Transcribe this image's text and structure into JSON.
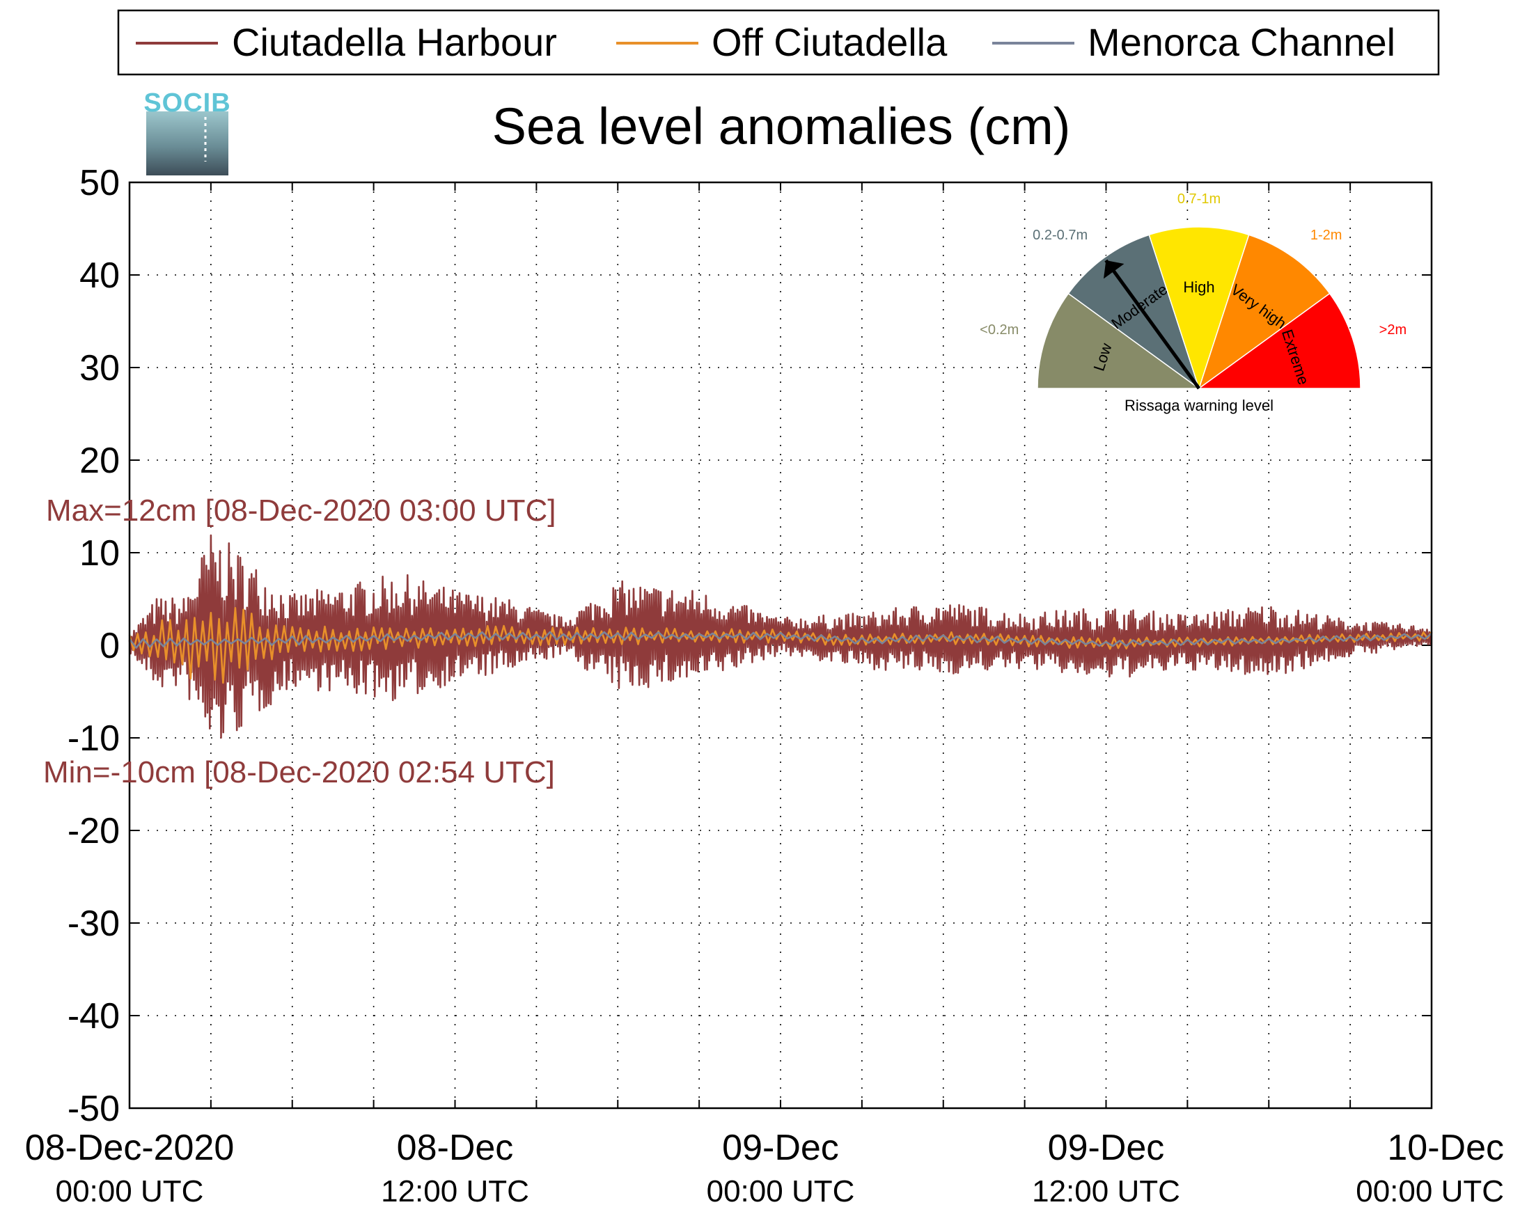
{
  "chart_data": {
    "type": "line",
    "title": "Sea level anomalies (cm)",
    "xlabel": "",
    "ylabel": "",
    "ylim": [
      -50,
      50
    ],
    "yticks": [
      -50,
      -40,
      -30,
      -20,
      -10,
      0,
      10,
      20,
      30,
      40,
      50
    ],
    "xlim": [
      "2020-12-08 00:00",
      "2020-12-10 00:00"
    ],
    "xtick_labels": [
      {
        "line1": "08-Dec-2020",
        "line2": "00:00 UTC"
      },
      {
        "line1": "08-Dec",
        "line2": "12:00 UTC"
      },
      {
        "line1": "09-Dec",
        "line2": "00:00 UTC"
      },
      {
        "line1": "09-Dec",
        "line2": "12:00 UTC"
      },
      {
        "line1": "10-Dec",
        "line2": "00:00 UTC"
      }
    ],
    "grid": true,
    "legend_position": "top",
    "series": [
      {
        "name": "Ciutadella Harbour",
        "color": "#8f3b3b",
        "peak_envelope_cm": [
          {
            "x": "2020-12-08 00:00",
            "amp": 1
          },
          {
            "x": "2020-12-08 01:00",
            "amp": 5
          },
          {
            "x": "2020-12-08 02:00",
            "amp": 5
          },
          {
            "x": "2020-12-08 03:00",
            "amp": 12
          },
          {
            "x": "2020-12-08 04:00",
            "amp": 10
          },
          {
            "x": "2020-12-08 06:00",
            "amp": 5
          },
          {
            "x": "2020-12-08 08:00",
            "amp": 6
          },
          {
            "x": "2020-12-08 10:00",
            "amp": 7
          },
          {
            "x": "2020-12-08 12:00",
            "amp": 5
          },
          {
            "x": "2020-12-08 14:00",
            "amp": 4
          },
          {
            "x": "2020-12-08 16:00",
            "amp": 2
          },
          {
            "x": "2020-12-08 18:00",
            "amp": 6
          },
          {
            "x": "2020-12-08 21:00",
            "amp": 5
          },
          {
            "x": "2020-12-09 00:00",
            "amp": 2
          },
          {
            "x": "2020-12-09 03:00",
            "amp": 3
          },
          {
            "x": "2020-12-09 06:00",
            "amp": 4
          },
          {
            "x": "2020-12-09 09:00",
            "amp": 3
          },
          {
            "x": "2020-12-09 12:00",
            "amp": 4
          },
          {
            "x": "2020-12-09 15:00",
            "amp": 3
          },
          {
            "x": "2020-12-09 18:00",
            "amp": 4
          },
          {
            "x": "2020-12-09 21:00",
            "amp": 2
          },
          {
            "x": "2020-12-10 00:00",
            "amp": 1
          }
        ]
      },
      {
        "name": "Off Ciutadella",
        "color": "#e8902a",
        "peak_envelope_cm": [
          {
            "x": "2020-12-08 00:00",
            "amp": 1
          },
          {
            "x": "2020-12-08 03:00",
            "amp": 5
          },
          {
            "x": "2020-12-08 06:00",
            "amp": 1.5
          },
          {
            "x": "2020-12-08 12:00",
            "amp": 1.2
          },
          {
            "x": "2020-12-09 00:00",
            "amp": 0.7
          },
          {
            "x": "2020-12-10 00:00",
            "amp": 0.5
          }
        ]
      },
      {
        "name": "Menorca Channel",
        "color": "#7a849a",
        "peak_envelope_cm": [
          {
            "x": "2020-12-08 00:00",
            "amp": 0.5
          },
          {
            "x": "2020-12-10 00:00",
            "amp": 0.3
          }
        ]
      }
    ],
    "baseline_cm": [
      {
        "x": "2020-12-08 00:00",
        "y": 0.2
      },
      {
        "x": "2020-12-08 06:00",
        "y": 0.5
      },
      {
        "x": "2020-12-08 12:00",
        "y": 1.0
      },
      {
        "x": "2020-12-09 00:00",
        "y": 1.0
      },
      {
        "x": "2020-12-09 03:00",
        "y": 0.5
      },
      {
        "x": "2020-12-09 06:00",
        "y": 0.8
      },
      {
        "x": "2020-12-09 12:00",
        "y": 0.2
      },
      {
        "x": "2020-12-09 18:00",
        "y": 0.5
      },
      {
        "x": "2020-12-10 00:00",
        "y": 1.0
      }
    ],
    "annotations": {
      "max": {
        "text": "Max=12cm [08-Dec-2020 03:00 UTC]",
        "color": "#8f3b3b"
      },
      "min": {
        "text": "Min=-10cm [08-Dec-2020 02:54 UTC]",
        "color": "#8f3b3b"
      }
    }
  },
  "logo": {
    "text": "SOCIB"
  },
  "gauge": {
    "caption": "Rissaga warning level",
    "needle_level": "Moderate",
    "sectors": [
      {
        "label": "Low",
        "range": "<0.2m",
        "color": "#878b68",
        "range_color": "#878b68"
      },
      {
        "label": "Moderate",
        "range": "0.2-0.7m",
        "color": "#5b7076",
        "range_color": "#5b7076"
      },
      {
        "label": "High",
        "range": "0.7-1m",
        "color": "#ffe600",
        "range_color": "#e0c800"
      },
      {
        "label": "Very high",
        "range": "1-2m",
        "color": "#ff8800",
        "range_color": "#ff8800"
      },
      {
        "label": "Extreme",
        "range": ">2m",
        "color": "#ff0000",
        "range_color": "#ff0000"
      }
    ]
  }
}
